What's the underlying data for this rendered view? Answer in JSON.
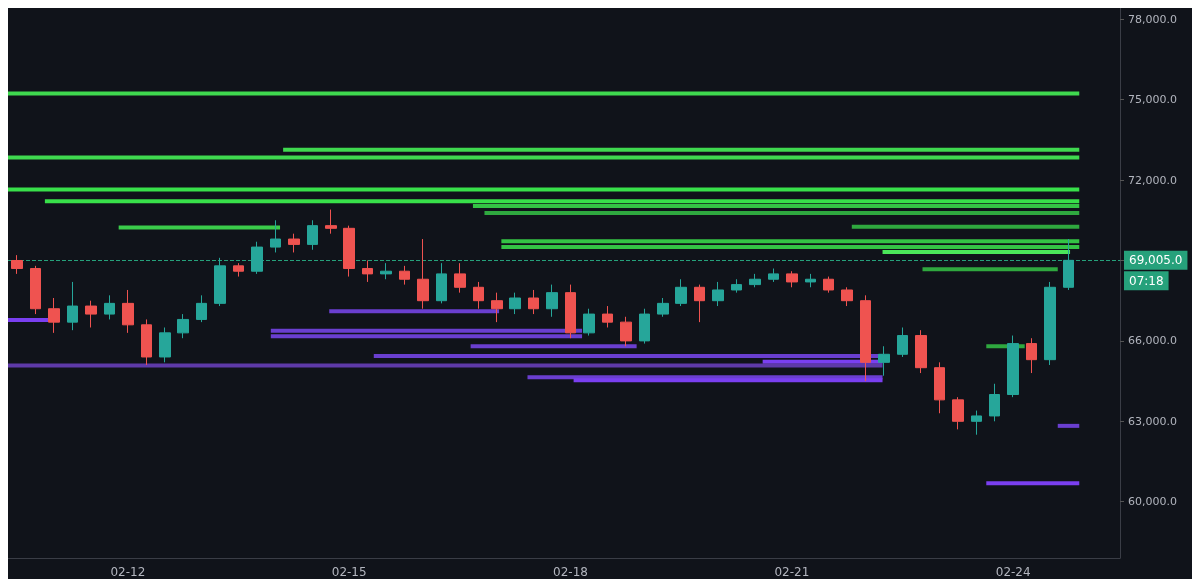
{
  "chart_data": {
    "type": "candlestick",
    "x": [
      "--02-10T12:00",
      "--02-10T18:00",
      "--02-11T00:00",
      "--02-11T06:00",
      "--02-11T12:00",
      "--02-11T18:00",
      "--02-12T00:00",
      "--02-12T06:00",
      "--02-12T12:00",
      "--02-12T18:00",
      "--02-13T00:00",
      "--02-13T06:00",
      "--02-13T12:00",
      "--02-13T18:00",
      "--02-14T00:00",
      "--02-14T06:00",
      "--02-14T12:00",
      "--02-14T18:00",
      "--02-15T00:00",
      "--02-15T06:00",
      "--02-15T12:00",
      "--02-15T18:00",
      "--02-16T00:00",
      "--02-16T06:00",
      "--02-16T12:00",
      "--02-16T18:00",
      "--02-17T00:00",
      "--02-17T06:00",
      "--02-17T12:00",
      "--02-17T18:00",
      "--02-18T00:00",
      "--02-18T06:00",
      "--02-18T12:00",
      "--02-18T18:00",
      "--02-19T00:00",
      "--02-19T06:00",
      "--02-19T12:00",
      "--02-19T18:00",
      "--02-20T00:00",
      "--02-20T06:00",
      "--02-20T12:00",
      "--02-20T18:00",
      "--02-21T00:00",
      "--02-21T06:00",
      "--02-21T12:00",
      "--02-21T18:00",
      "--02-22T00:00",
      "--02-22T06:00",
      "--02-22T12:00",
      "--02-22T18:00",
      "--02-23T00:00",
      "--02-23T06:00",
      "--02-23T12:00",
      "--02-23T18:00",
      "--02-24T00:00",
      "--02-24T06:00",
      "--02-24T12:00",
      "--02-24T18:00"
    ],
    "ohlc": [
      [
        69000,
        69200,
        68500,
        68700
      ],
      [
        68700,
        68800,
        67000,
        67200
      ],
      [
        67200,
        67600,
        66300,
        66700
      ],
      [
        66700,
        68200,
        66400,
        67300
      ],
      [
        67300,
        67500,
        66500,
        67000
      ],
      [
        67000,
        67700,
        66800,
        67400
      ],
      [
        67400,
        67900,
        66300,
        66600
      ],
      [
        66600,
        66800,
        65100,
        65400
      ],
      [
        65400,
        66500,
        65200,
        66300
      ],
      [
        66300,
        67000,
        66100,
        66800
      ],
      [
        66800,
        67700,
        66700,
        67400
      ],
      [
        67400,
        69100,
        67300,
        68800
      ],
      [
        68800,
        68900,
        68400,
        68600
      ],
      [
        68600,
        69700,
        68500,
        69500
      ],
      [
        69500,
        70500,
        69300,
        69800
      ],
      [
        69800,
        70000,
        69300,
        69600
      ],
      [
        69600,
        70500,
        69400,
        70300
      ],
      [
        70300,
        70900,
        70000,
        70200
      ],
      [
        70200,
        70300,
        68400,
        68700
      ],
      [
        68700,
        69000,
        68200,
        68500
      ],
      [
        68500,
        68900,
        68300,
        68600
      ],
      [
        68600,
        68800,
        68100,
        68300
      ],
      [
        68300,
        69800,
        67200,
        67500
      ],
      [
        67500,
        68900,
        67400,
        68500
      ],
      [
        68500,
        68900,
        67800,
        68000
      ],
      [
        68000,
        68200,
        67200,
        67500
      ],
      [
        67500,
        67800,
        66700,
        67200
      ],
      [
        67200,
        67800,
        67000,
        67600
      ],
      [
        67600,
        67900,
        67000,
        67200
      ],
      [
        67200,
        68100,
        66900,
        67800
      ],
      [
        67800,
        68100,
        66100,
        66300
      ],
      [
        66300,
        67200,
        66200,
        67000
      ],
      [
        67000,
        67300,
        66500,
        66700
      ],
      [
        66700,
        66900,
        65800,
        66000
      ],
      [
        66000,
        67200,
        65900,
        67000
      ],
      [
        67000,
        67600,
        66900,
        67400
      ],
      [
        67400,
        68300,
        67300,
        68000
      ],
      [
        68000,
        68100,
        66700,
        67500
      ],
      [
        67500,
        68200,
        67300,
        67900
      ],
      [
        67900,
        68300,
        67800,
        68100
      ],
      [
        68100,
        68500,
        68000,
        68300
      ],
      [
        68300,
        68700,
        68200,
        68500
      ],
      [
        68500,
        68600,
        68000,
        68200
      ],
      [
        68200,
        68500,
        68000,
        68300
      ],
      [
        68300,
        68400,
        67800,
        67900
      ],
      [
        67900,
        68000,
        67300,
        67500
      ],
      [
        67500,
        67700,
        64500,
        65200
      ],
      [
        65200,
        65800,
        64700,
        65500
      ],
      [
        65500,
        66500,
        65400,
        66200
      ],
      [
        66200,
        66400,
        64800,
        65000
      ],
      [
        65000,
        65200,
        63300,
        63800
      ],
      [
        63800,
        63900,
        62700,
        63000
      ],
      [
        63000,
        63400,
        62500,
        63200
      ],
      [
        63200,
        64400,
        63000,
        64000
      ],
      [
        64000,
        66200,
        63900,
        65900
      ],
      [
        65900,
        66100,
        64800,
        65300
      ],
      [
        65300,
        68200,
        65100,
        68000
      ],
      [
        68000,
        69800,
        67900,
        69005
      ]
    ],
    "series": [
      {
        "type": "line",
        "color": "#3fd94f",
        "x": [
          "--02-10T09:00",
          "--02-24T21:30"
        ],
        "values": [
          75230,
          75230
        ]
      },
      {
        "type": "line",
        "color": "#3fd94f",
        "x": [
          "--02-14T02:30",
          "--02-24T21:30"
        ],
        "values": [
          73130,
          73130
        ]
      },
      {
        "type": "line",
        "color": "#3fd94f",
        "x": [
          "--02-10T09:00",
          "--02-24T21:30"
        ],
        "values": [
          72840,
          72840
        ]
      },
      {
        "type": "line",
        "color": "#38e04a",
        "x": [
          "--02-10T09:00",
          "--02-24T21:30"
        ],
        "values": [
          71650,
          71650
        ]
      },
      {
        "type": "line",
        "color": "#38e04a",
        "x": [
          "--02-10T21:00",
          "--02-24T21:30"
        ],
        "values": [
          71210,
          71210
        ]
      },
      {
        "type": "line",
        "color": "#34c445",
        "x": [
          "--02-16T16:15",
          "--02-24T21:30"
        ],
        "values": [
          71030,
          71030
        ]
      },
      {
        "type": "line",
        "color": "#2fa83f",
        "x": [
          "--02-16T20:00",
          "--02-24T21:30"
        ],
        "values": [
          70770,
          70770
        ]
      },
      {
        "type": "line",
        "color": "#2fa83f",
        "x": [
          "--02-21T19:30",
          "--02-24T21:30"
        ],
        "values": [
          70260,
          70260
        ]
      },
      {
        "type": "line",
        "color": "#3acb4a",
        "x": [
          "--02-11T21:00",
          "--02-14T01:30"
        ],
        "values": [
          70230,
          70230
        ]
      },
      {
        "type": "line",
        "color": "#34c445",
        "x": [
          "--02-17T01:30",
          "--02-24T21:30"
        ],
        "values": [
          69720,
          69720
        ]
      },
      {
        "type": "line",
        "color": "#34c445",
        "x": [
          "--02-17T01:30",
          "--02-24T21:30"
        ],
        "values": [
          69500,
          69500
        ]
      },
      {
        "type": "line",
        "color": "#4be65a",
        "x": [
          "--02-22T05:30",
          "--02-24T18:30"
        ],
        "values": [
          69320,
          69320
        ]
      },
      {
        "type": "line",
        "color": "#2fa83f",
        "x": [
          "--02-22T18:30",
          "--02-24T14:30"
        ],
        "values": [
          68670,
          68670
        ]
      },
      {
        "type": "line",
        "color": "#2fa83f",
        "x": [
          "--02-23T15:15",
          "--02-24T03:45"
        ],
        "values": [
          65800,
          65800
        ]
      },
      {
        "type": "line",
        "color": "#7a3ff0",
        "x": [
          "--02-10T09:00",
          "--02-10T23:30"
        ],
        "values": [
          66780,
          66780
        ]
      },
      {
        "type": "line",
        "color": "#6a3fd0",
        "x": [
          "--02-14T17:30",
          "--02-17T00:45"
        ],
        "values": [
          67110,
          67110
        ]
      },
      {
        "type": "line",
        "color": "#6a3fd0",
        "x": [
          "--02-13T22:30",
          "--02-18T03:45"
        ],
        "values": [
          66380,
          66380
        ]
      },
      {
        "type": "line",
        "color": "#6a3fd0",
        "x": [
          "--02-13T22:30",
          "--02-18T03:45"
        ],
        "values": [
          66170,
          66170
        ]
      },
      {
        "type": "line",
        "color": "#6a3fd0",
        "x": [
          "--02-16T15:30",
          "--02-18T21:30"
        ],
        "values": [
          65800,
          65800
        ]
      },
      {
        "type": "line",
        "color": "#6a3fd0",
        "x": [
          "--02-15T08:00",
          "--02-22T05:30"
        ],
        "values": [
          65440,
          65440
        ]
      },
      {
        "type": "line",
        "color": "#7a3ff0",
        "x": [
          "--02-20T14:30",
          "--02-22T05:30"
        ],
        "values": [
          65220,
          65220
        ]
      },
      {
        "type": "line",
        "color": "#5e3aa8",
        "x": [
          "--02-10T09:00",
          "--02-22T05:30"
        ],
        "values": [
          65080,
          65080
        ]
      },
      {
        "type": "line",
        "color": "#6a3fd0",
        "x": [
          "--02-17T10:00",
          "--02-22T05:30"
        ],
        "values": [
          64640,
          64640
        ]
      },
      {
        "type": "line",
        "color": "#7a3ff0",
        "x": [
          "--02-18T01:00",
          "--02-22T05:30"
        ],
        "values": [
          64530,
          64530
        ]
      },
      {
        "type": "line",
        "color": "#6a3fd0",
        "x": [
          "--02-24T14:30",
          "--02-24T21:30"
        ],
        "values": [
          62830,
          62830
        ]
      },
      {
        "type": "line",
        "color": "#7a3ff0",
        "x": [
          "--02-23T15:15",
          "--02-24T21:30"
        ],
        "values": [
          60690,
          60690
        ]
      }
    ],
    "xlim": [
      "--02-10T09:00",
      "--02-25T10:45"
    ],
    "xticks": [
      {
        "value": "--02-12",
        "label": "02-12"
      },
      {
        "value": "--02-15",
        "label": "02-15"
      },
      {
        "value": "--02-18",
        "label": "02-18"
      },
      {
        "value": "--02-21",
        "label": "02-21"
      },
      {
        "value": "--02-24",
        "label": "02-24"
      }
    ],
    "ylim": [
      57900,
      78420
    ],
    "yticks": [
      {
        "value": 60000,
        "label": "60,000.0"
      },
      {
        "value": 63000,
        "label": "63,000.0"
      },
      {
        "value": 66000,
        "label": "66,000.0"
      },
      {
        "value": 69000,
        "label": null
      },
      {
        "value": 72000,
        "label": "72,000.0"
      },
      {
        "value": 75000,
        "label": "75,000.0"
      },
      {
        "value": 78000,
        "label": "78,000.0"
      }
    ],
    "ref_lines": [
      {
        "axis": "y",
        "value": 69005,
        "label": "69,005.0",
        "color": "#26a17b",
        "line_style": "dashed"
      }
    ],
    "annotations": [
      "07:18"
    ],
    "grid": false,
    "marker": "none"
  }
}
